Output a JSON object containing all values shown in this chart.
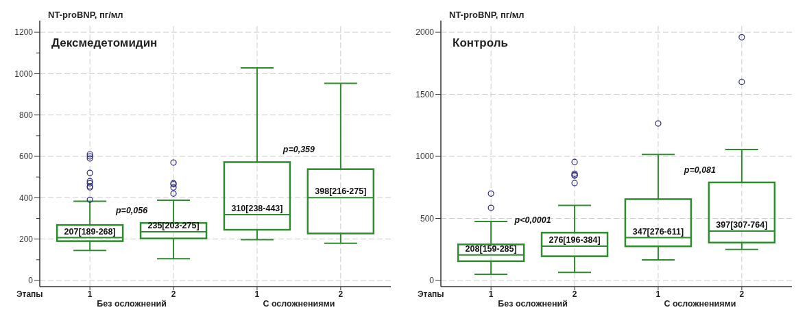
{
  "chart_data": [
    {
      "type": "box",
      "title": "Дексмедетомидин",
      "ylabel": "NT-proBNP, пг/мл",
      "xlabel": "Этапы",
      "categories": [
        "1",
        "2",
        "1",
        "2"
      ],
      "color": "#2e8b2e",
      "grid": true,
      "ylim": [
        -30,
        1230
      ],
      "yticks": [
        0,
        {
          "value": 100,
          "label": null
        },
        200,
        {
          "value": 300,
          "label": null
        },
        400,
        {
          "value": 500,
          "label": null
        },
        600,
        {
          "value": 700,
          "label": null
        },
        800,
        {
          "value": 900,
          "label": null
        },
        1000,
        {
          "value": 1100,
          "label": null
        },
        1200
      ],
      "boxes": [
        {
          "low": 145,
          "q1": 190,
          "median": 207,
          "q3": 268,
          "high": 383,
          "outliers": [
            390,
            450,
            455,
            470,
            480,
            520,
            590,
            600,
            610
          ]
        },
        {
          "low": 105,
          "q1": 203,
          "median": 235,
          "q3": 278,
          "high": 388,
          "outliers": [
            420,
            450,
            465,
            470,
            570
          ]
        },
        {
          "low": 197,
          "q1": 245,
          "median": 318,
          "q3": 572,
          "high": 1028
        },
        {
          "low": 180,
          "q1": 227,
          "median": 400,
          "q3": 538,
          "high": 953
        }
      ],
      "annotations": [
        "207[189-268]",
        "235[203-275]",
        "310[238-443]",
        "398[216-275]",
        "p=0,056",
        "p=0,359",
        "Без осложнений",
        "С осложнениями"
      ]
    },
    {
      "type": "box",
      "title": "Контроль",
      "ylabel": "NT-proBNP, пг/мл",
      "xlabel": "Этапы",
      "categories": [
        "1",
        "2",
        "1",
        "2"
      ],
      "color": "#2e8b2e",
      "grid": true,
      "ylim": [
        -50,
        2050
      ],
      "yticks": [
        0,
        500,
        1000,
        1500,
        2000
      ],
      "boxes": [
        {
          "low": 50,
          "q1": 155,
          "median": 205,
          "q3": 290,
          "high": 475,
          "outliers": [
            585,
            700
          ]
        },
        {
          "low": 65,
          "q1": 195,
          "median": 276,
          "q3": 385,
          "high": 605,
          "outliers": [
            785,
            845,
            850,
            860,
            955
          ]
        },
        {
          "low": 165,
          "q1": 275,
          "median": 345,
          "q3": 655,
          "high": 1015,
          "outliers": [
            1265
          ]
        },
        {
          "low": 250,
          "q1": 305,
          "median": 397,
          "q3": 790,
          "high": 1055,
          "outliers": [
            1600,
            1960
          ]
        }
      ],
      "annotations": [
        "208[159-285]",
        "276[196-384]",
        "347[276-611]",
        "397[307-764]",
        "p<0,0001",
        "p=0,081",
        "Без осложнений",
        "С осложнениями"
      ]
    }
  ]
}
